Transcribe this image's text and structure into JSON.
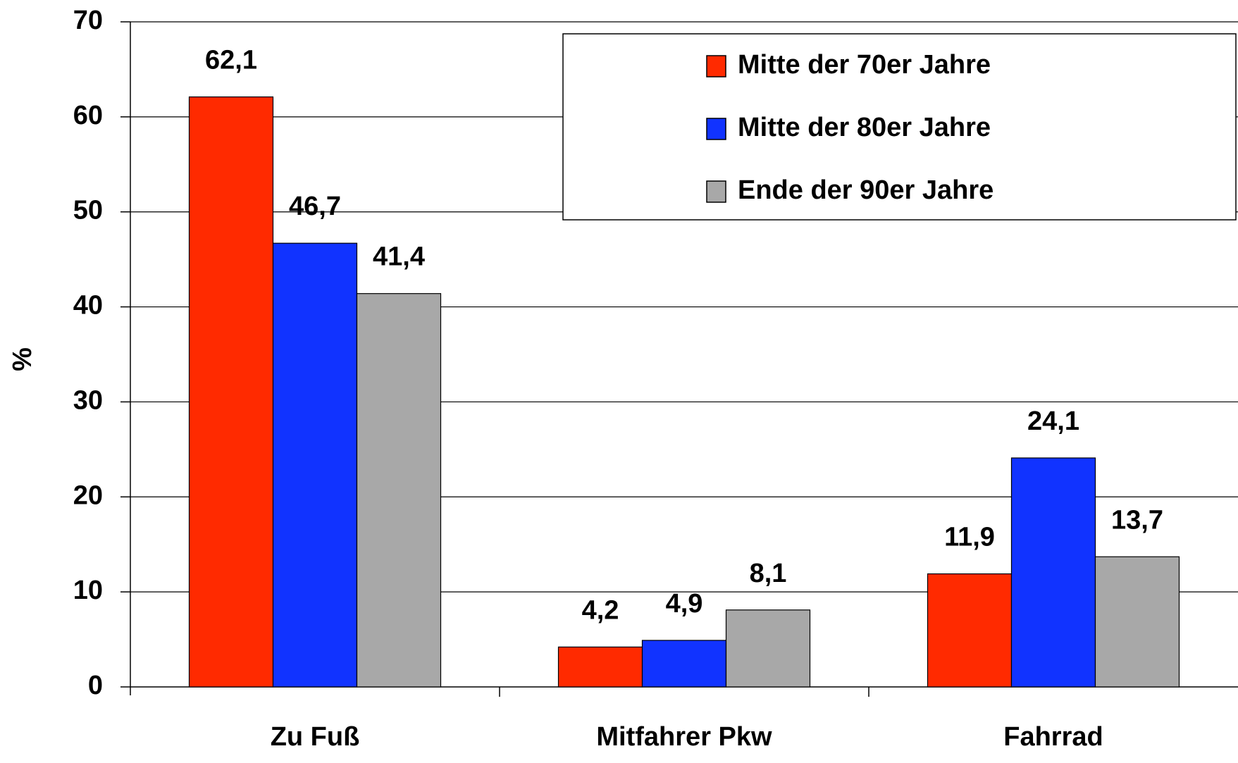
{
  "chart_data": {
    "type": "bar",
    "y_label": "%",
    "categories": [
      "Zu Fuß",
      "Mitfahrer Pkw",
      "Fahrrad"
    ],
    "series": [
      {
        "name": "Mitte der 70er Jahre",
        "color": "#ff2a00",
        "values": [
          62.1,
          4.2,
          11.9
        ],
        "value_labels": [
          "62,1",
          "4,2",
          "11,9"
        ]
      },
      {
        "name": "Mitte der 80er Jahre",
        "color": "#1133ff",
        "values": [
          46.7,
          4.9,
          24.1
        ],
        "value_labels": [
          "46,7",
          "4,9",
          "24,1"
        ]
      },
      {
        "name": "Ende der 90er Jahre",
        "color": "#a8a8a8",
        "values": [
          41.4,
          8.1,
          13.7
        ],
        "value_labels": [
          "41,4",
          "8,1",
          "13,7"
        ]
      }
    ],
    "ylim": [
      0,
      70
    ],
    "yticks": [
      0,
      10,
      20,
      30,
      40,
      50,
      60,
      70
    ],
    "grid": true,
    "legend": "top-right"
  }
}
